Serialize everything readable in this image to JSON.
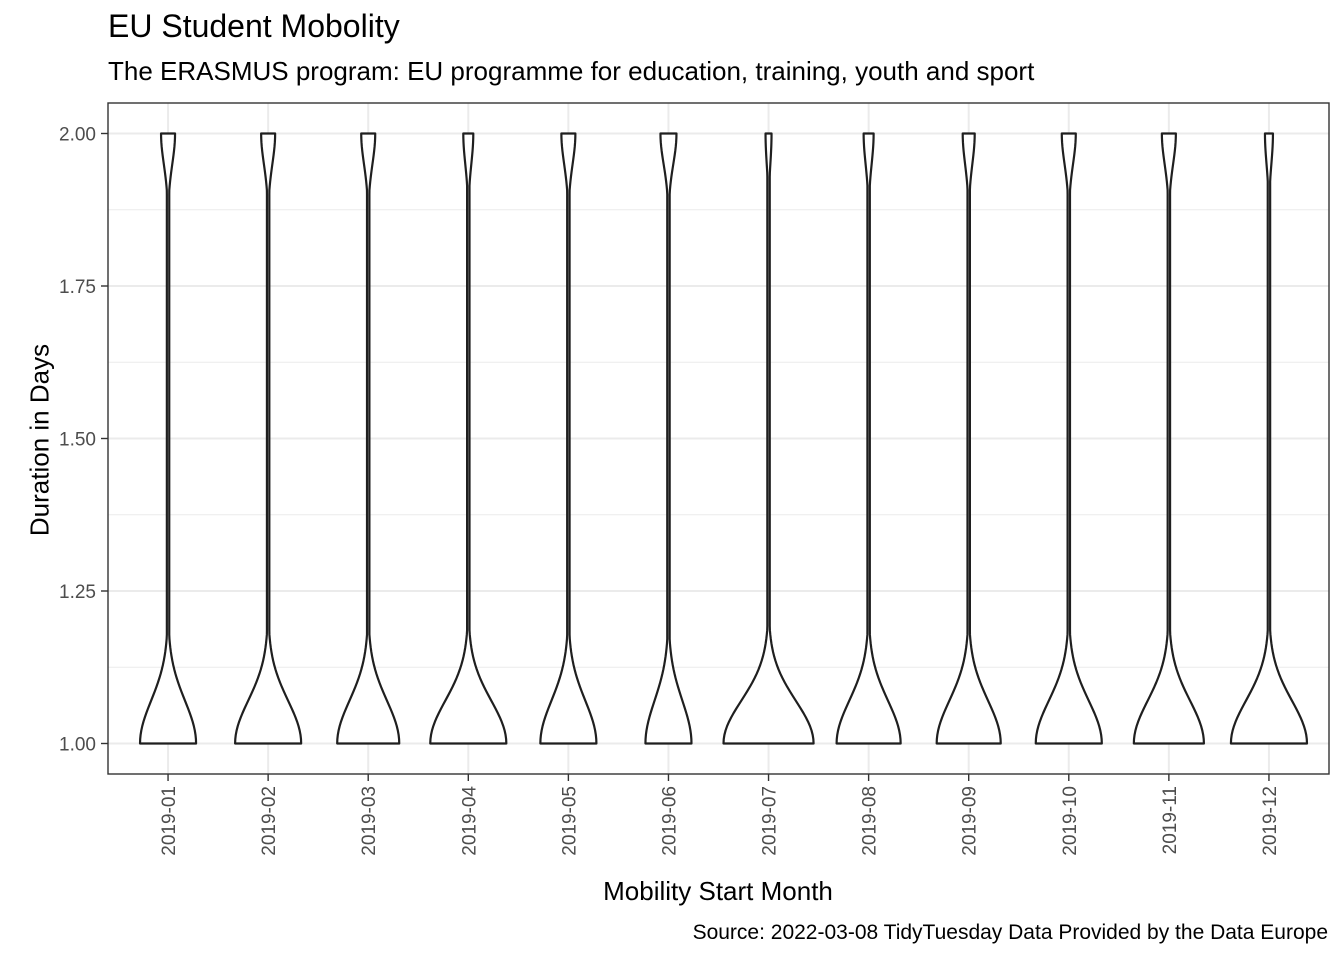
{
  "chart_data": {
    "type": "violin",
    "title": "EU Student Mobolity",
    "subtitle": "The ERASMUS program: EU programme for education, training, youth and sport",
    "xlabel": "Mobility Start Month",
    "ylabel": "Duration in Days",
    "caption": "Source: 2022-03-08 TidyTuesday  Data Provided by the Data Europe",
    "ylim": [
      0.95,
      2.05
    ],
    "y_ticks": [
      "1.00",
      "1.25",
      "1.50",
      "1.75",
      "2.00"
    ],
    "y_tick_values": [
      1.0,
      1.25,
      1.5,
      1.75,
      2.0
    ],
    "categories": [
      "2019-01",
      "2019-02",
      "2019-03",
      "2019-04",
      "2019-05",
      "2019-06",
      "2019-07",
      "2019-08",
      "2019-09",
      "2019-10",
      "2019-11",
      "2019-12"
    ],
    "violin_base_width": [
      0.56,
      0.66,
      0.62,
      0.76,
      0.56,
      0.46,
      0.9,
      0.64,
      0.64,
      0.66,
      0.7,
      0.76
    ],
    "violin_top_width": [
      0.14,
      0.14,
      0.14,
      0.1,
      0.14,
      0.16,
      0.06,
      0.1,
      0.12,
      0.14,
      0.14,
      0.08
    ],
    "grid": true,
    "line_color": "#1f1f1f",
    "grid_color": "#ebebeb"
  }
}
